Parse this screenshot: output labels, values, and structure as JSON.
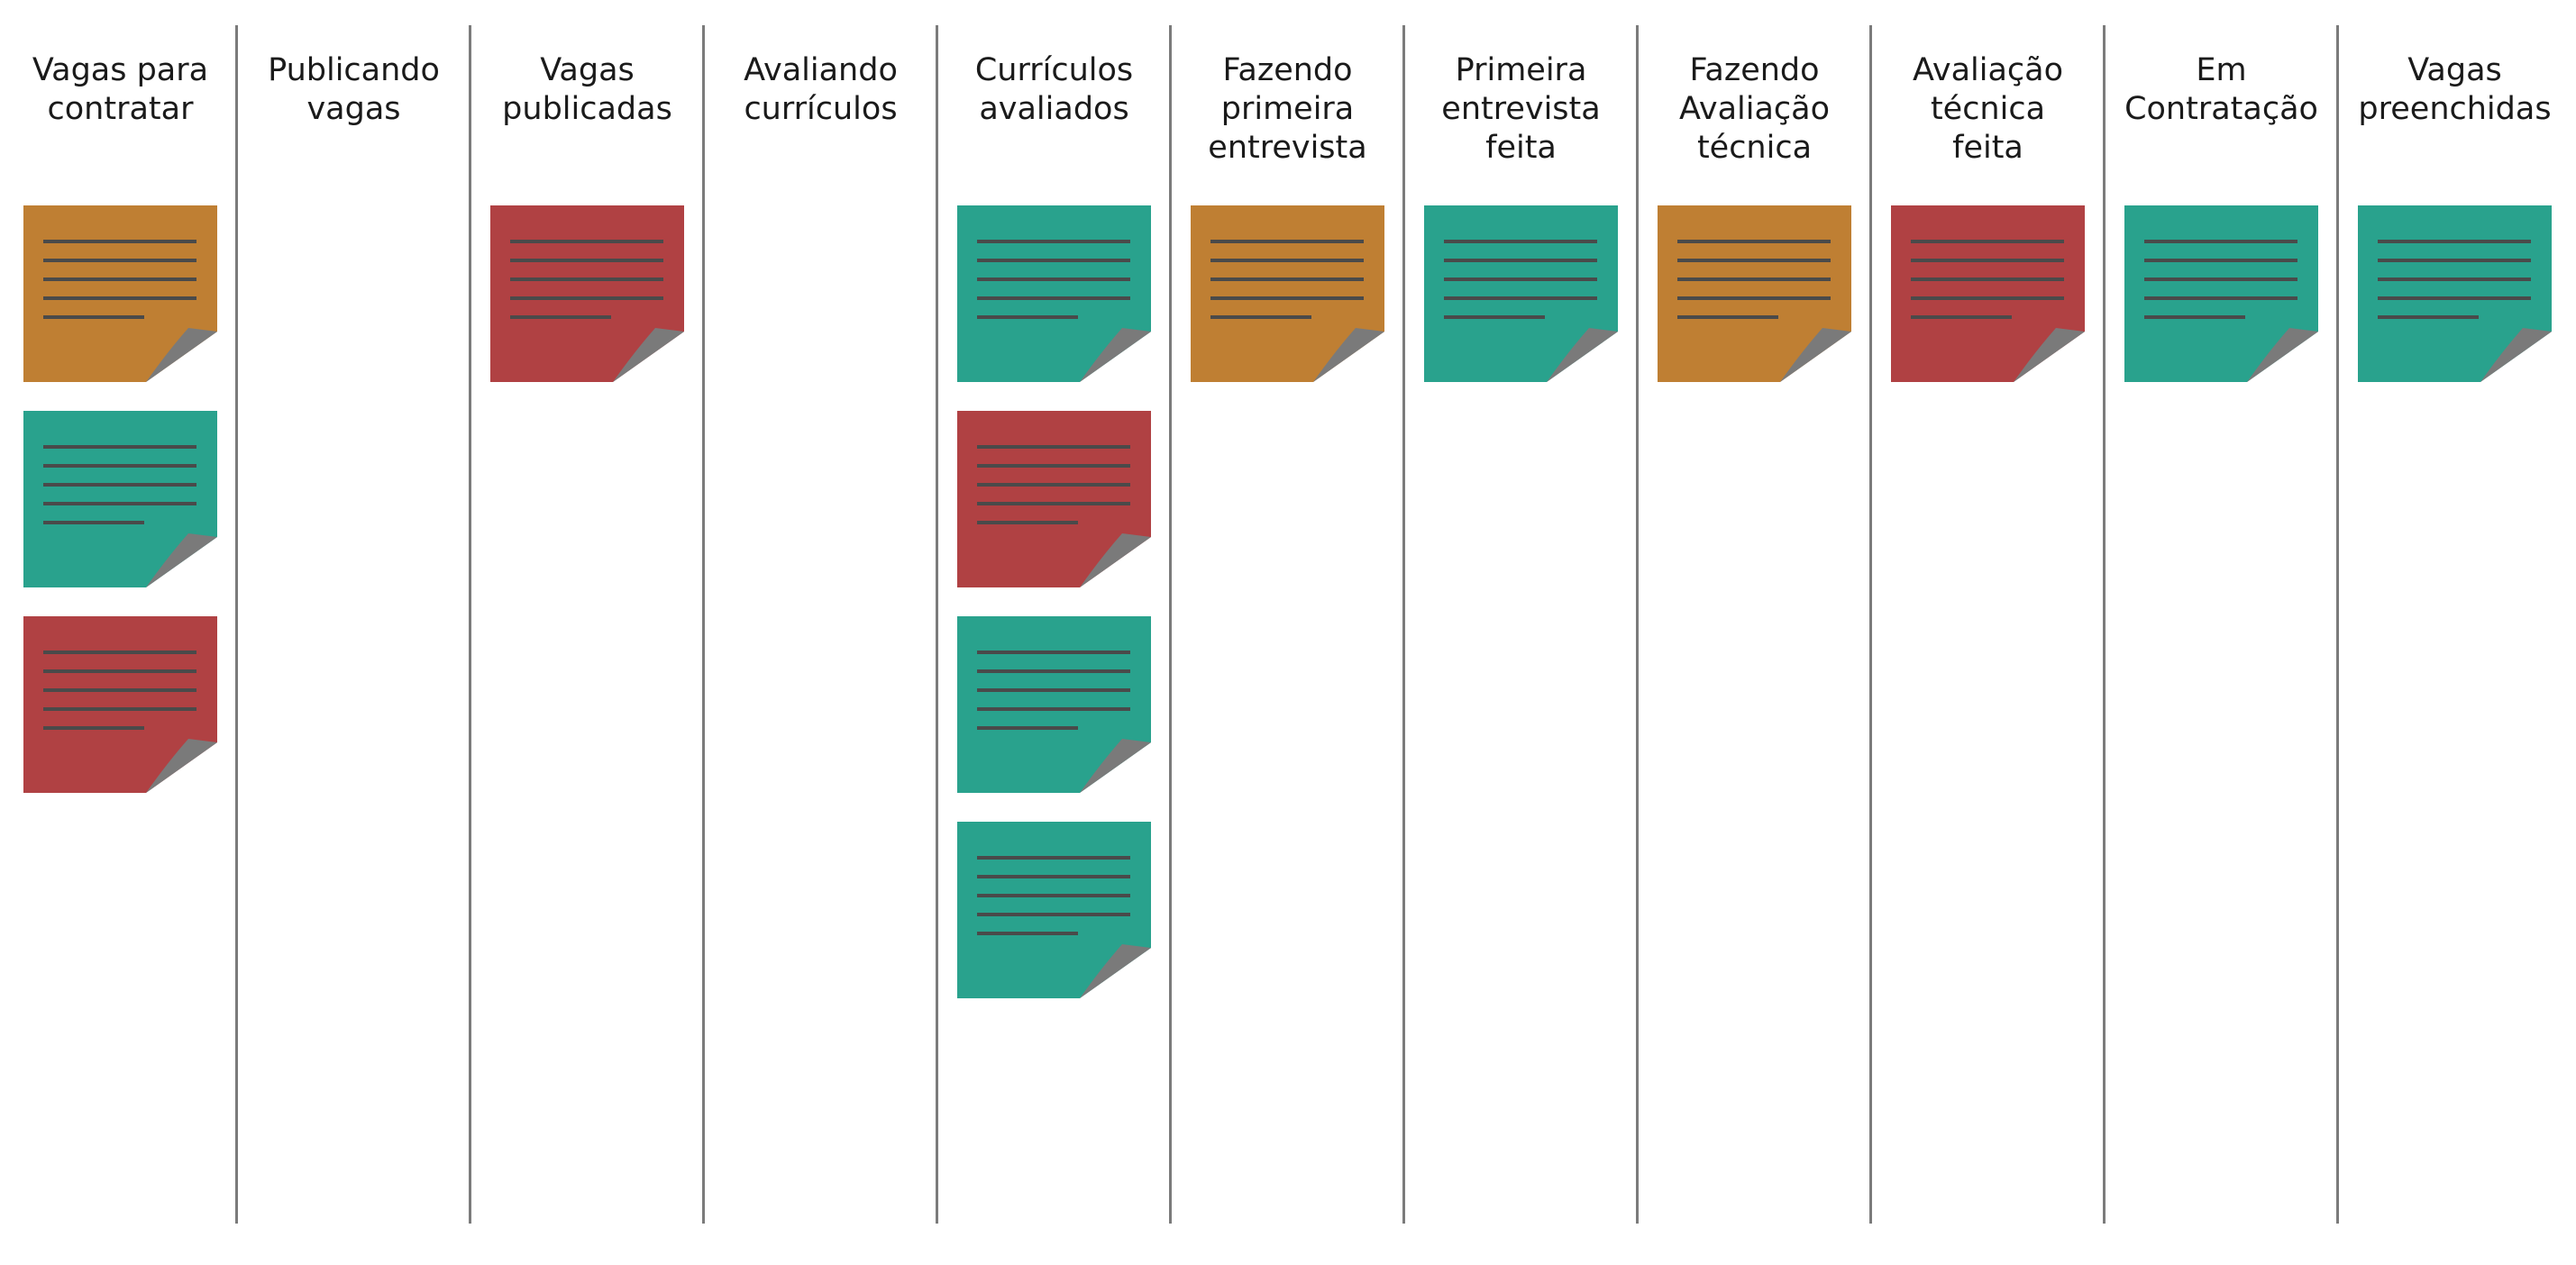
{
  "colors": {
    "orange": "#bf7f33",
    "teal": "#29a28d",
    "red": "#b04143",
    "fold": "#7a7a7a",
    "note_lines": "#4a4a4a",
    "divider": "#7b7b7b"
  },
  "columns": [
    {
      "title": "Vagas para\ncontratar",
      "notes": [
        "orange",
        "teal",
        "red"
      ]
    },
    {
      "title": "Publicando\nvagas",
      "notes": []
    },
    {
      "title": "Vagas\npublicadas",
      "notes": [
        "red"
      ]
    },
    {
      "title": "Avaliando\ncurrículos",
      "notes": []
    },
    {
      "title": "Currículos\navaliados",
      "notes": [
        "teal",
        "red",
        "teal",
        "teal"
      ]
    },
    {
      "title": "Fazendo\nprimeira\nentrevista",
      "notes": [
        "orange"
      ]
    },
    {
      "title": "Primeira\nentrevista\nfeita",
      "notes": [
        "teal"
      ]
    },
    {
      "title": "Fazendo\nAvaliação\ntécnica",
      "notes": [
        "orange"
      ]
    },
    {
      "title": "Avaliação\ntécnica\nfeita",
      "notes": [
        "red"
      ]
    },
    {
      "title": "Em\nContratação",
      "notes": [
        "teal"
      ]
    },
    {
      "title": "Vagas\npreenchidas",
      "notes": [
        "teal"
      ]
    }
  ]
}
